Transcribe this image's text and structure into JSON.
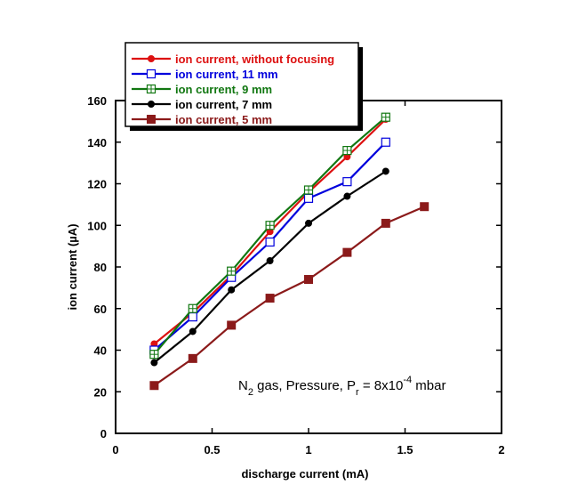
{
  "chart_data": {
    "type": "line",
    "xlabel": "discharge current (mA)",
    "ylabel_prefix": "ion current (",
    "ylabel_mu": "µ",
    "ylabel_suffix": "A)",
    "xlim": [
      0,
      2
    ],
    "ylim": [
      0,
      160
    ],
    "xticks": [
      0,
      0.5,
      1,
      1.5,
      2
    ],
    "xtick_labels": [
      "0",
      "0.5",
      "1",
      "1.5",
      "2"
    ],
    "yticks": [
      0,
      20,
      40,
      60,
      80,
      100,
      120,
      140,
      160
    ],
    "ytick_labels": [
      "0",
      "20",
      "40",
      "60",
      "80",
      "100",
      "120",
      "140",
      "160"
    ],
    "grid": false,
    "legend_position": "top-left (outside plot, boxed with shadow)",
    "annotation": {
      "part1": "N",
      "sub1": "2",
      "part2": " gas, Pressure, P",
      "sub2": "r",
      "part3": " = 8x10",
      "sup": "-4",
      "part4": " mbar"
    },
    "series": [
      {
        "name": "ion current, without focusing",
        "color": "#dd1111",
        "marker": "filled-circle",
        "x": [
          0.2,
          0.4,
          0.6,
          0.8,
          1.0,
          1.2,
          1.4
        ],
        "y": [
          43,
          58,
          76,
          97,
          116,
          133,
          151
        ]
      },
      {
        "name": "ion current, 11 mm",
        "color": "#0000dd",
        "marker": "open-square",
        "x": [
          0.2,
          0.4,
          0.6,
          0.8,
          1.0,
          1.2,
          1.4
        ],
        "y": [
          40,
          56,
          75,
          92,
          113,
          121,
          140
        ]
      },
      {
        "name": "ion current, 9 mm",
        "color": "#117711",
        "marker": "crossed-square",
        "x": [
          0.2,
          0.4,
          0.6,
          0.8,
          1.0,
          1.2,
          1.4
        ],
        "y": [
          38,
          60,
          78,
          100,
          117,
          136,
          152
        ]
      },
      {
        "name": "ion current, 7 mm",
        "color": "#000000",
        "marker": "filled-circle",
        "x": [
          0.2,
          0.4,
          0.6,
          0.8,
          1.0,
          1.2,
          1.4
        ],
        "y": [
          34,
          49,
          69,
          83,
          101,
          114,
          126
        ]
      },
      {
        "name": "ion current, 5 mm",
        "color": "#8b1a1a",
        "marker": "filled-square",
        "x": [
          0.2,
          0.4,
          0.6,
          0.8,
          1.0,
          1.2,
          1.4,
          1.6
        ],
        "y": [
          23,
          36,
          52,
          65,
          74,
          87,
          101,
          109
        ]
      }
    ]
  }
}
